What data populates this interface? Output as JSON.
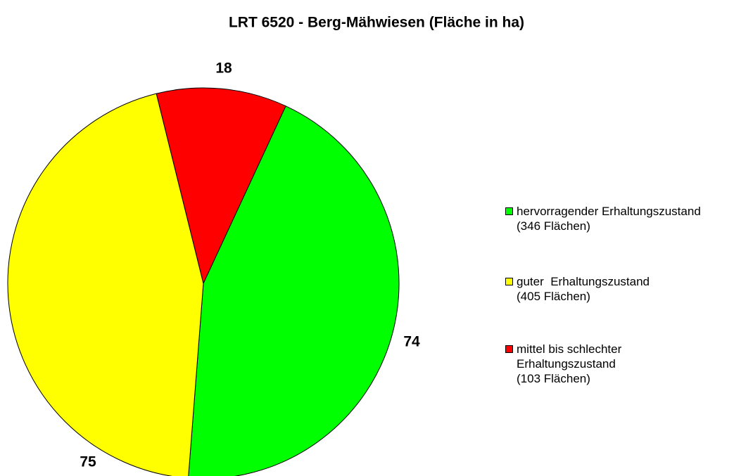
{
  "chart_data": {
    "type": "pie",
    "title": "LRT 6520 - Berg-Mähwiesen  (Fläche in ha)",
    "categories": [
      "hervorragender Erhaltungszustand\n(346 Flächen)",
      "guter  Erhaltungszustand\n(405 Flächen)",
      "mittel bis schlechter\nErhaltungszustand\n(103 Flächen)"
    ],
    "values": [
      74,
      75,
      18
    ],
    "colors": [
      "#00ff00",
      "#ffff00",
      "#ff0000"
    ],
    "legend": "right"
  }
}
